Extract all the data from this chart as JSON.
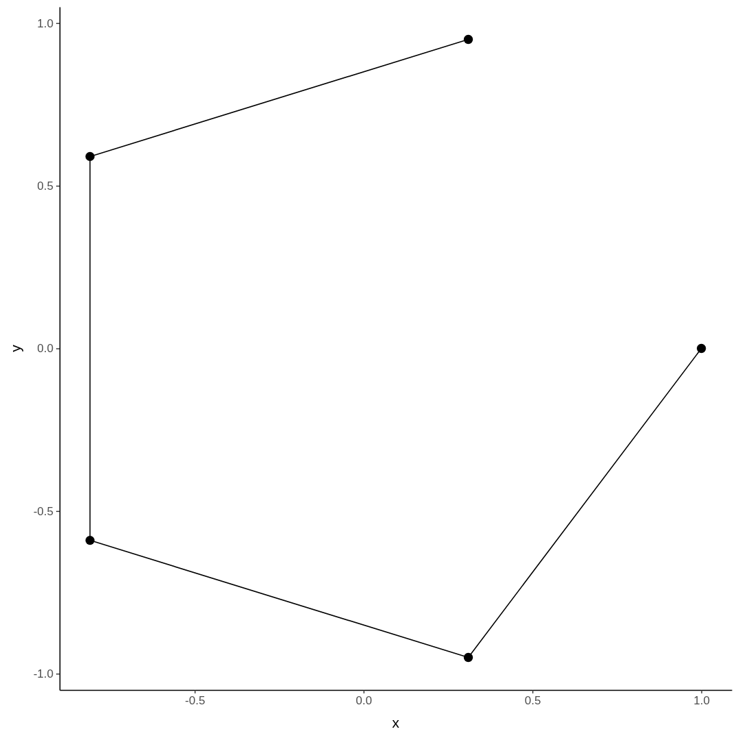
{
  "chart_data": {
    "type": "line",
    "xlabel": "x",
    "ylabel": "y",
    "x": [
      0.31,
      -0.81,
      -0.81,
      0.31,
      1.0
    ],
    "series": [
      {
        "color": "#000000",
        "values": [
          0.95,
          0.59,
          -0.59,
          -0.95,
          0.0
        ]
      }
    ],
    "xlim": [
      -0.9,
      1.09
    ],
    "ylim": [
      -1.05,
      1.05
    ],
    "xticks": [
      -0.5,
      {
        "value": 0,
        "label": "0.0"
      },
      0.5,
      {
        "value": 1,
        "label": "1.0"
      }
    ],
    "yticks": [
      {
        "value": -1,
        "label": "-1.0"
      },
      -0.5,
      {
        "value": 0,
        "label": "0.0"
      },
      0.5,
      {
        "value": 1,
        "label": "1.0"
      }
    ],
    "marker": "circle",
    "line_style": "solid"
  }
}
